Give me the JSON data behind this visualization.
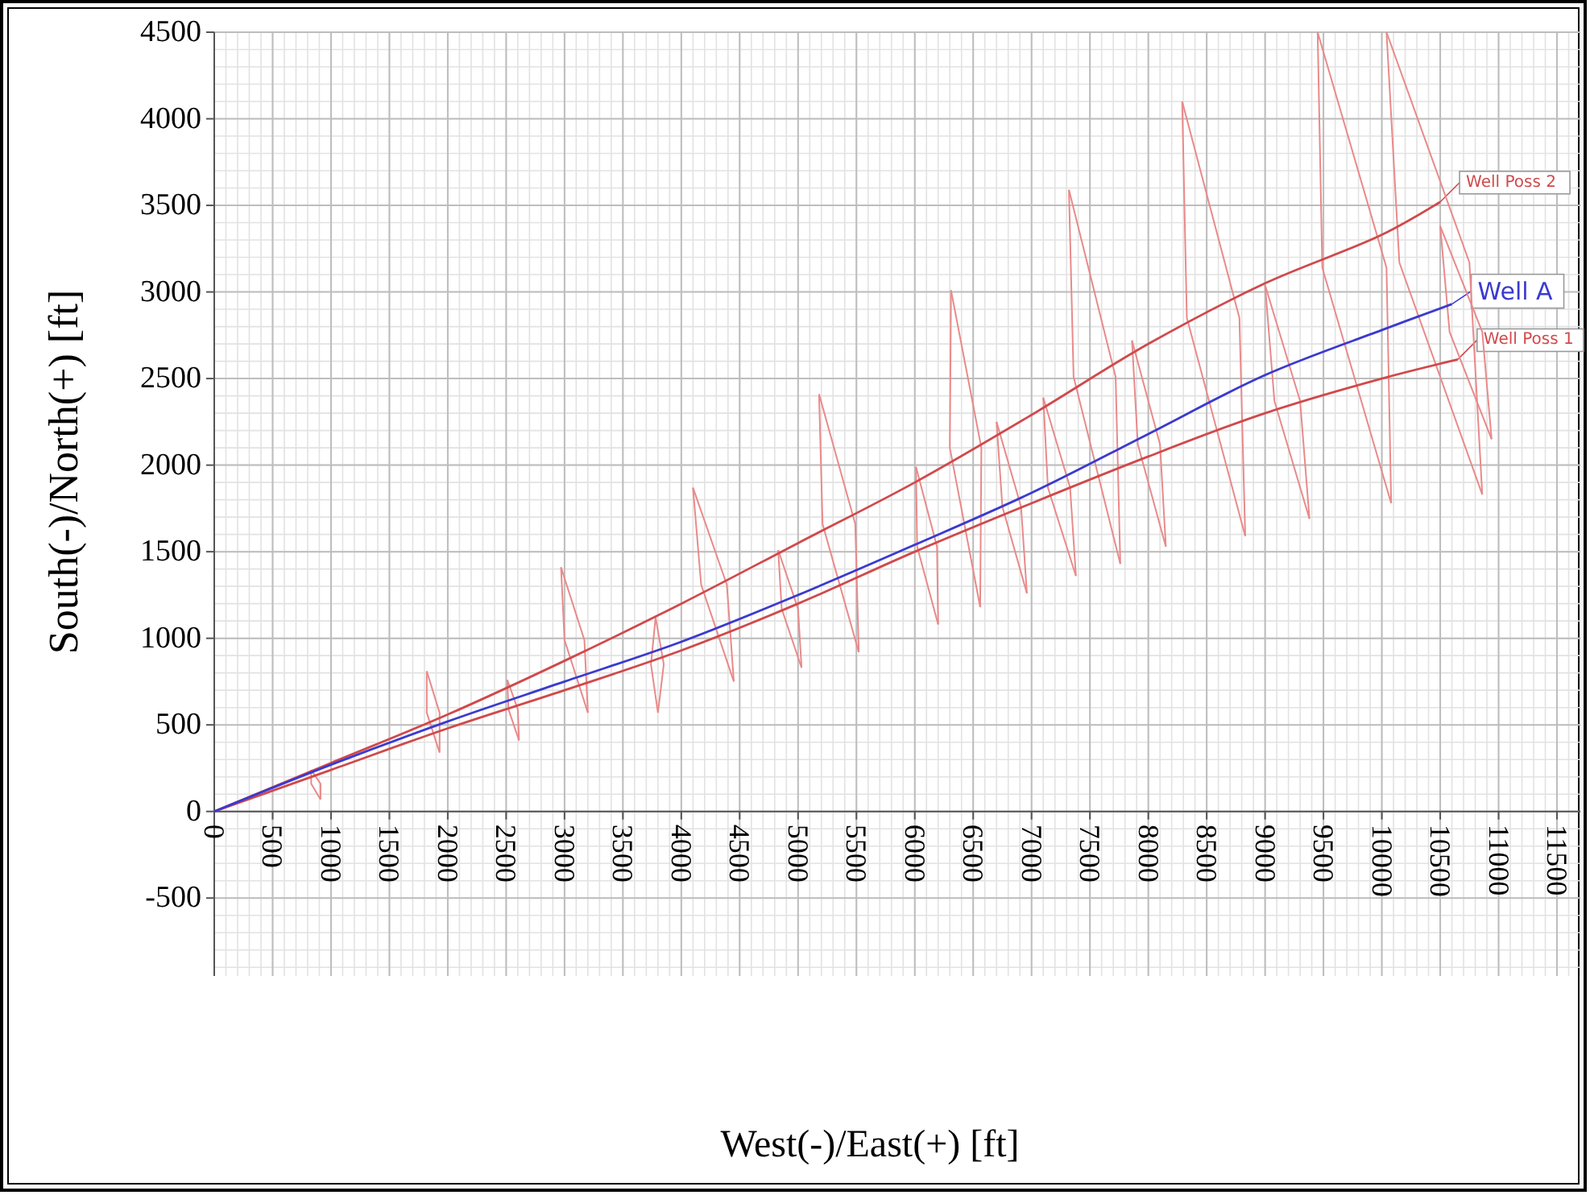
{
  "chart_data": {
    "type": "line",
    "xlabel": "West(-)/East(+) [ft]",
    "ylabel": "South(-)/North(+) [ft]",
    "xlim": [
      0,
      11700
    ],
    "ylim": [
      -950,
      4500
    ],
    "xticks": [
      0,
      500,
      1000,
      1500,
      2000,
      2500,
      3000,
      3500,
      4000,
      4500,
      5000,
      5500,
      6000,
      6500,
      7000,
      7500,
      8000,
      8500,
      9000,
      9500,
      10000,
      10500,
      11000,
      11500
    ],
    "yticks": [
      -500,
      0,
      500,
      1000,
      1500,
      2000,
      2500,
      3000,
      3500,
      4000,
      4500
    ],
    "grid": true,
    "marker": "none",
    "line_style": "solid",
    "legend": "right",
    "series": [
      {
        "color": "#e98a8a",
        "x": [
          830,
          830,
          910
        ],
        "values": [
          240,
          160,
          70
        ]
      },
      {
        "color": "#e98a8a",
        "x": [
          830,
          910,
          910
        ],
        "values": [
          240,
          160,
          70
        ]
      },
      {
        "color": "#e98a8a",
        "x": [
          1820,
          1820,
          1930
        ],
        "values": [
          810,
          570,
          340
        ]
      },
      {
        "color": "#e98a8a",
        "x": [
          1820,
          1930,
          1930
        ],
        "values": [
          810,
          570,
          340
        ]
      },
      {
        "color": "#e98a8a",
        "x": [
          2510,
          2520,
          2610
        ],
        "values": [
          760,
          590,
          410
        ]
      },
      {
        "color": "#e98a8a",
        "x": [
          2510,
          2600,
          2610
        ],
        "values": [
          760,
          590,
          410
        ]
      },
      {
        "color": "#e98a8a",
        "x": [
          2970,
          3000,
          3200
        ],
        "values": [
          1410,
          990,
          570
        ]
      },
      {
        "color": "#e98a8a",
        "x": [
          2970,
          3170,
          3200
        ],
        "values": [
          1410,
          990,
          570
        ]
      },
      {
        "color": "#e98a8a",
        "x": [
          3780,
          3740,
          3800
        ],
        "values": [
          1120,
          850,
          570
        ]
      },
      {
        "color": "#e98a8a",
        "x": [
          3780,
          3850,
          3800
        ],
        "values": [
          1120,
          850,
          570
        ]
      },
      {
        "color": "#e98a8a",
        "x": [
          4100,
          4170,
          4450
        ],
        "values": [
          1870,
          1310,
          750
        ]
      },
      {
        "color": "#e98a8a",
        "x": [
          4100,
          4390,
          4450
        ],
        "values": [
          1870,
          1310,
          750
        ]
      },
      {
        "color": "#e98a8a",
        "x": [
          4830,
          4860,
          5030
        ],
        "values": [
          1510,
          1170,
          830
        ]
      },
      {
        "color": "#e98a8a",
        "x": [
          4830,
          5000,
          5030
        ],
        "values": [
          1510,
          1170,
          830
        ]
      },
      {
        "color": "#e98a8a",
        "x": [
          5180,
          5210,
          5520
        ],
        "values": [
          2410,
          1660,
          920
        ]
      },
      {
        "color": "#e98a8a",
        "x": [
          5180,
          5490,
          5520
        ],
        "values": [
          2410,
          1660,
          920
        ]
      },
      {
        "color": "#e98a8a",
        "x": [
          6010,
          6020,
          6200
        ],
        "values": [
          1990,
          1530,
          1080
        ]
      },
      {
        "color": "#e98a8a",
        "x": [
          6010,
          6190,
          6200
        ],
        "values": [
          1990,
          1530,
          1080
        ]
      },
      {
        "color": "#e98a8a",
        "x": [
          6310,
          6300,
          6560
        ],
        "values": [
          3010,
          2100,
          1180
        ]
      },
      {
        "color": "#e98a8a",
        "x": [
          6310,
          6570,
          6560
        ],
        "values": [
          3010,
          2100,
          1180
        ]
      },
      {
        "color": "#e98a8a",
        "x": [
          6700,
          6750,
          6960
        ],
        "values": [
          2250,
          1760,
          1260
        ]
      },
      {
        "color": "#e98a8a",
        "x": [
          6700,
          6910,
          6960
        ],
        "values": [
          2250,
          1760,
          1260
        ]
      },
      {
        "color": "#e98a8a",
        "x": [
          7100,
          7140,
          7380
        ],
        "values": [
          2390,
          1870,
          1360
        ]
      },
      {
        "color": "#e98a8a",
        "x": [
          7100,
          7330,
          7380
        ],
        "values": [
          2390,
          1870,
          1360
        ]
      },
      {
        "color": "#e98a8a",
        "x": [
          7320,
          7360,
          7760
        ],
        "values": [
          3590,
          2510,
          1430
        ]
      },
      {
        "color": "#e98a8a",
        "x": [
          7320,
          7720,
          7760
        ],
        "values": [
          3590,
          2510,
          1430
        ]
      },
      {
        "color": "#e98a8a",
        "x": [
          7860,
          7910,
          8150
        ],
        "values": [
          2720,
          2120,
          1530
        ]
      },
      {
        "color": "#e98a8a",
        "x": [
          7860,
          8100,
          8150
        ],
        "values": [
          2720,
          2120,
          1530
        ]
      },
      {
        "color": "#e98a8a",
        "x": [
          8290,
          8330,
          8830
        ],
        "values": [
          4100,
          2850,
          1590
        ]
      },
      {
        "color": "#e98a8a",
        "x": [
          8290,
          8780,
          8830
        ],
        "values": [
          4100,
          2850,
          1590
        ]
      },
      {
        "color": "#e98a8a",
        "x": [
          9000,
          9080,
          9380
        ],
        "values": [
          3040,
          2370,
          1690
        ]
      },
      {
        "color": "#e98a8a",
        "x": [
          9000,
          9300,
          9380
        ],
        "values": [
          3040,
          2370,
          1690
        ]
      },
      {
        "color": "#e98a8a",
        "x": [
          9450,
          9490,
          10080
        ],
        "values": [
          4500,
          3140,
          1780
        ]
      },
      {
        "color": "#e98a8a",
        "x": [
          9450,
          10040,
          10080
        ],
        "values": [
          4500,
          3140,
          1780
        ]
      },
      {
        "color": "#e98a8a",
        "x": [
          10040,
          10150,
          10860
        ],
        "values": [
          4500,
          3170,
          1830
        ]
      },
      {
        "color": "#e98a8a",
        "x": [
          10040,
          10750,
          10860
        ],
        "values": [
          4500,
          3170,
          1830
        ]
      },
      {
        "color": "#e98a8a",
        "x": [
          10500,
          10580,
          10940
        ],
        "values": [
          3380,
          2770,
          2150
        ]
      },
      {
        "color": "#e98a8a",
        "x": [
          10500,
          10860,
          10940
        ],
        "values": [
          3380,
          2770,
          2150
        ]
      },
      {
        "name": "Well Poss 2",
        "color": "#d0494b",
        "x": [
          0,
          1000,
          2000,
          3000,
          4000,
          5000,
          6000,
          7000,
          8000,
          9000,
          10000,
          10500
        ],
        "values": [
          0,
          280,
          560,
          870,
          1200,
          1550,
          1900,
          2290,
          2700,
          3050,
          3330,
          3520
        ]
      },
      {
        "name": "Well Poss 1",
        "color": "#d0494b",
        "x": [
          0,
          1000,
          2000,
          3000,
          4000,
          5000,
          6000,
          7000,
          8000,
          9000,
          10000,
          10650
        ],
        "values": [
          0,
          240,
          480,
          700,
          930,
          1200,
          1500,
          1780,
          2050,
          2300,
          2500,
          2610
        ]
      },
      {
        "name": "Well A",
        "color": "#3a3ad0",
        "x": [
          0,
          1000,
          2000,
          3000,
          4000,
          5000,
          6000,
          7000,
          8000,
          9000,
          10000,
          10600
        ],
        "values": [
          0,
          270,
          520,
          750,
          980,
          1250,
          1540,
          1840,
          2180,
          2520,
          2780,
          2930
        ]
      }
    ]
  }
}
